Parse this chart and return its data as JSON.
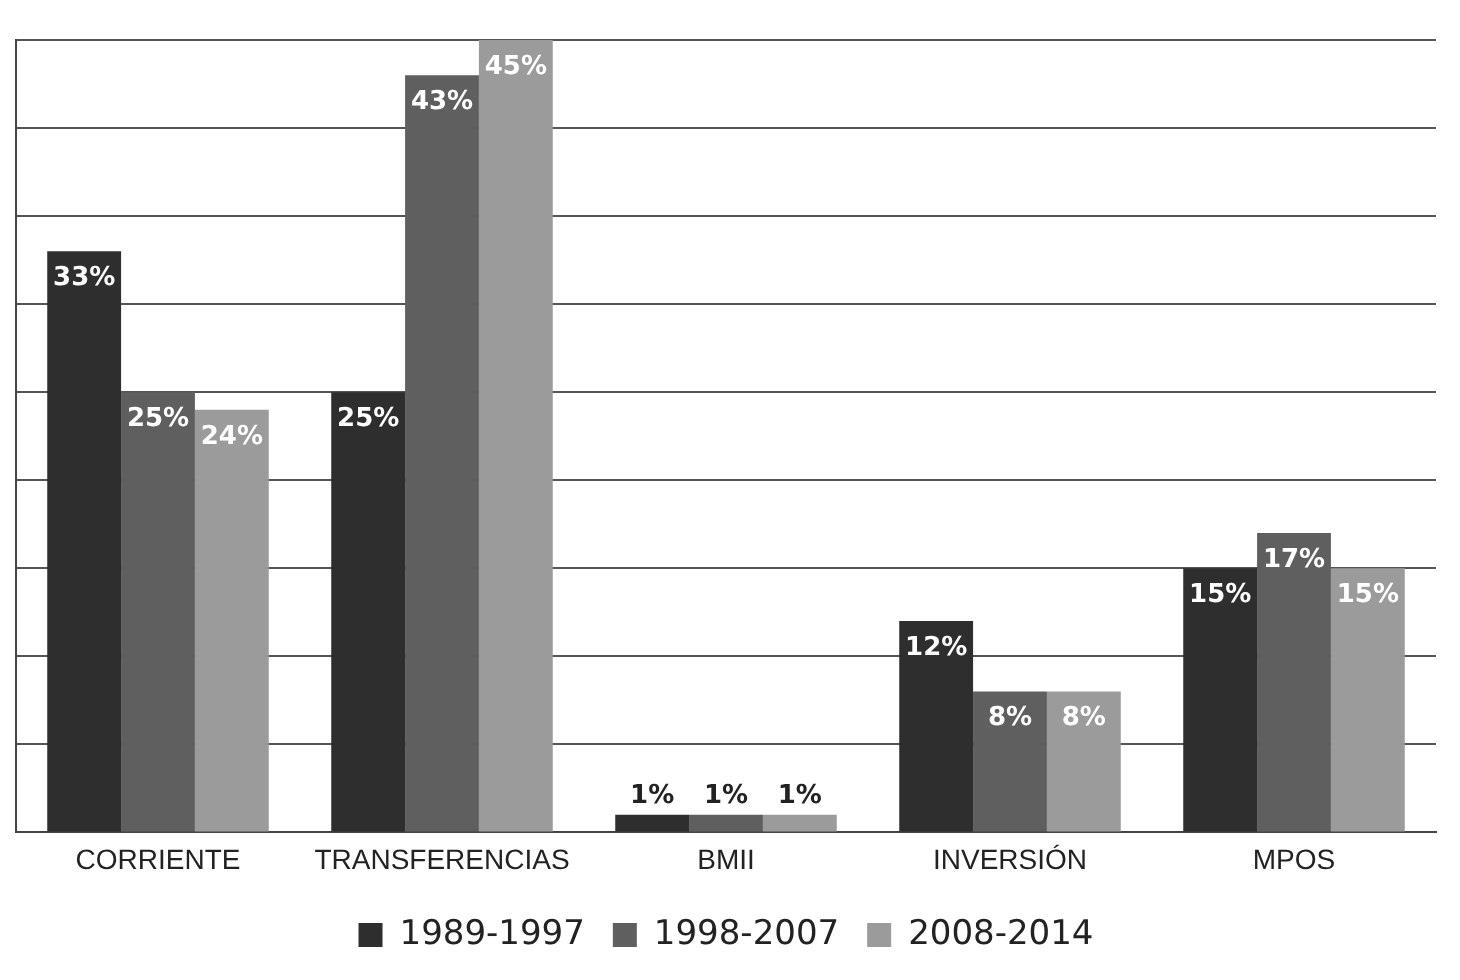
{
  "chart_data": {
    "type": "bar",
    "categories": [
      "CORRIENTE",
      "TRANSFERENCIAS",
      "BMII",
      "INVERSIÓN",
      "MPOS"
    ],
    "series": [
      {
        "name": "1989-1997",
        "color": "#2e2e2e",
        "values": [
          33,
          25,
          1,
          12,
          15
        ],
        "value_labels": [
          "33%",
          "25%",
          "1%",
          "12%",
          "15%"
        ]
      },
      {
        "name": "1998-2007",
        "color": "#5f5f5f",
        "values": [
          25,
          43,
          1,
          8,
          17
        ],
        "value_labels": [
          "25%",
          "43%",
          "1%",
          "8%",
          "17%"
        ]
      },
      {
        "name": "2008-2014",
        "color": "#9b9b9b",
        "values": [
          24,
          45,
          1,
          8,
          15
        ],
        "value_labels": [
          "24%",
          "45%",
          "1%",
          "8%",
          "15%"
        ]
      }
    ],
    "ylim": [
      0,
      45
    ],
    "yticks": [
      {
        "value": 0,
        "label": null
      },
      {
        "value": 5,
        "label": null
      },
      {
        "value": 10,
        "label": null
      },
      {
        "value": 15,
        "label": null
      },
      {
        "value": 20,
        "label": null
      },
      {
        "value": 25,
        "label": null
      },
      {
        "value": 30,
        "label": null
      },
      {
        "value": 35,
        "label": null
      },
      {
        "value": 40,
        "label": null
      },
      {
        "value": 45,
        "label": null
      }
    ],
    "grid": "y",
    "tick_labels": "x",
    "legend": "bottom"
  }
}
